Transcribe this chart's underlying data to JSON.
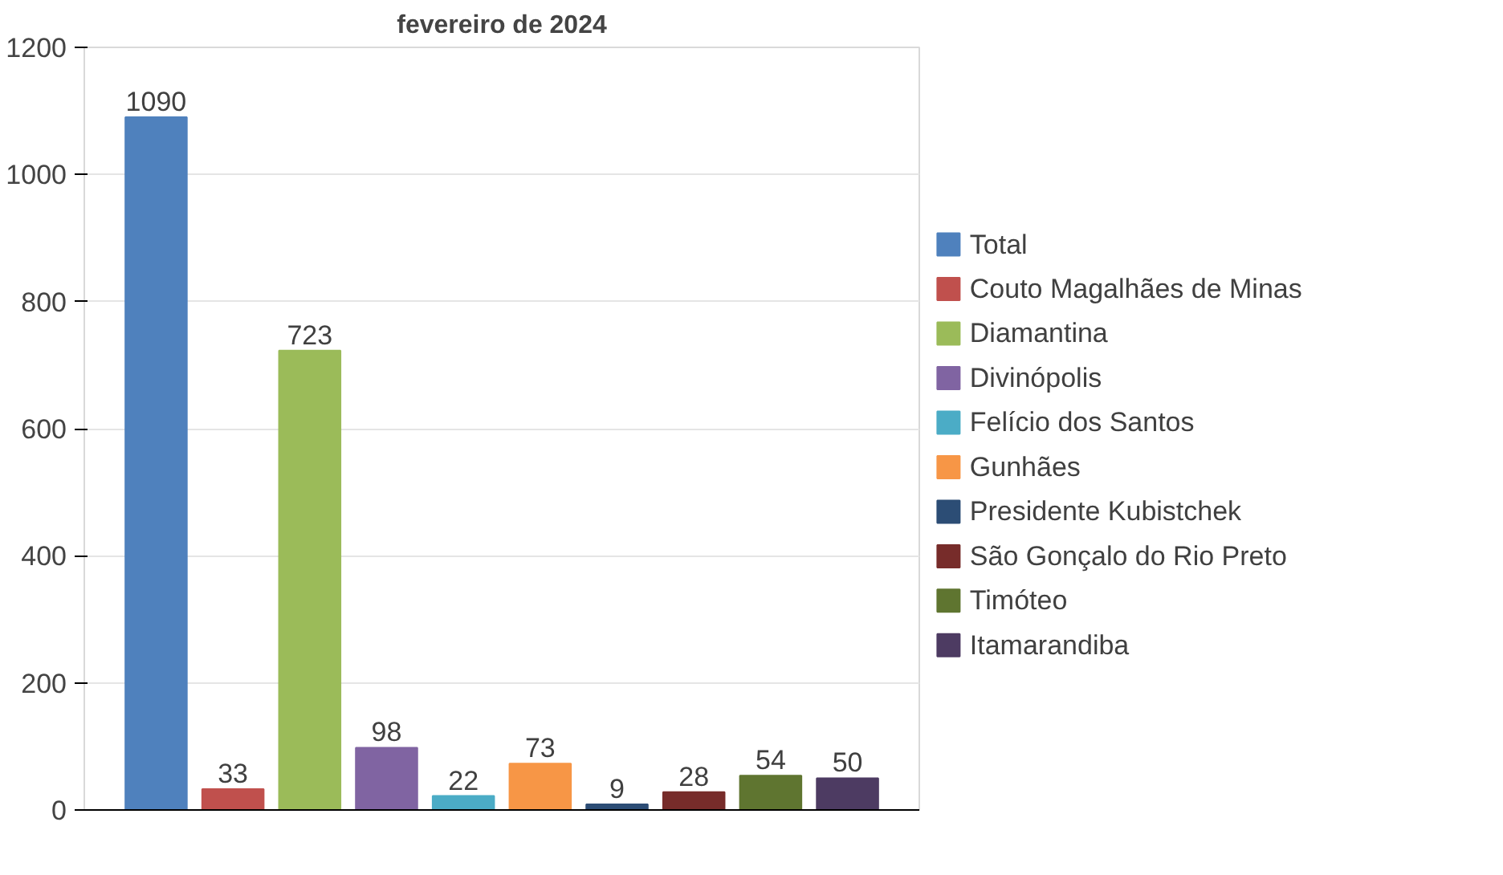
{
  "chart_data": {
    "type": "bar",
    "title": "fevereiro de 2024",
    "categories": [
      null
    ],
    "series": [
      {
        "name": "Total",
        "color": "#4f81bd",
        "values": [
          1090
        ]
      },
      {
        "name": "Couto Magalhães de Minas",
        "color": "#c0504d",
        "values": [
          33
        ]
      },
      {
        "name": "Diamantina",
        "color": "#9bbb59",
        "values": [
          723
        ]
      },
      {
        "name": "Divinópolis",
        "color": "#8064a2",
        "values": [
          98
        ]
      },
      {
        "name": "Felício dos Santos",
        "color": "#4bacc6",
        "values": [
          22
        ]
      },
      {
        "name": "Gunhães",
        "color": "#f79646",
        "values": [
          73
        ]
      },
      {
        "name": "Presidente Kubistchek",
        "color": "#2c4d75",
        "values": [
          9
        ]
      },
      {
        "name": "São Gonçalo do Rio Preto",
        "color": "#772c2a",
        "values": [
          28
        ]
      },
      {
        "name": "Timóteo",
        "color": "#5f7530",
        "values": [
          54
        ]
      },
      {
        "name": "Itamarandiba",
        "color": "#4d3b62",
        "values": [
          50
        ]
      }
    ],
    "ylim": [
      0,
      1200
    ],
    "yticks": [
      0,
      200,
      400,
      600,
      800,
      1000,
      1200
    ],
    "grid": "y",
    "legend": "right",
    "data_labels": true
  }
}
